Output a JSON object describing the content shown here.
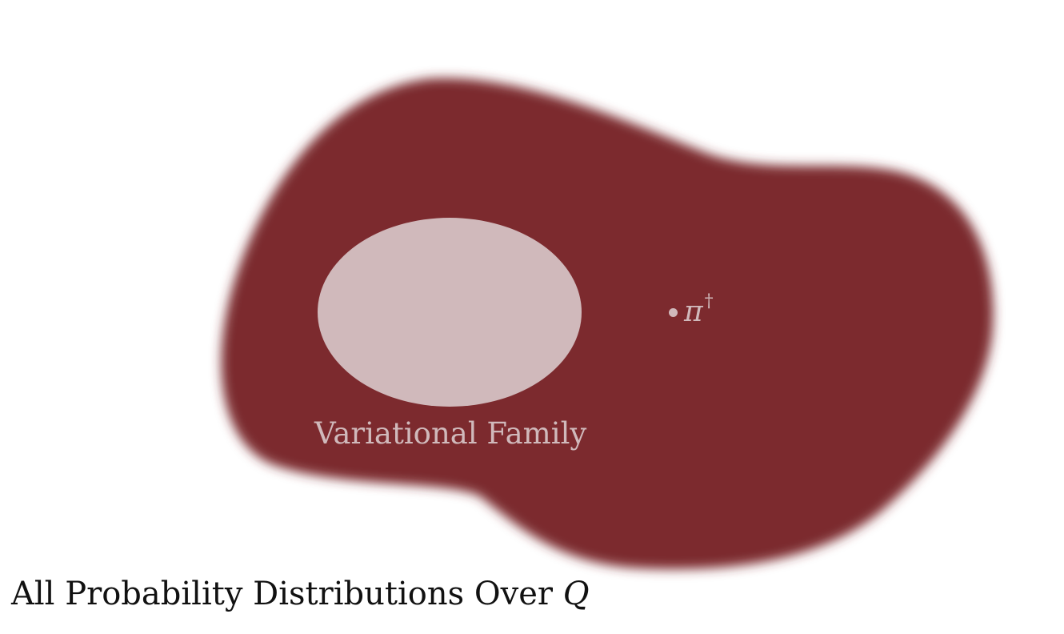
{
  "caption": {
    "text": "All Probability Distributions Over",
    "math_symbol": "Q"
  },
  "variational_family": {
    "label": "Variational Family"
  },
  "target_point": {
    "symbol": "π",
    "superscript": "†"
  },
  "colors": {
    "blob_fill": "#7c2a2d",
    "family_fill": "#d0b9bb",
    "label_color": "#d0b9bb",
    "caption_color": "#111111",
    "background": "#ffffff"
  }
}
